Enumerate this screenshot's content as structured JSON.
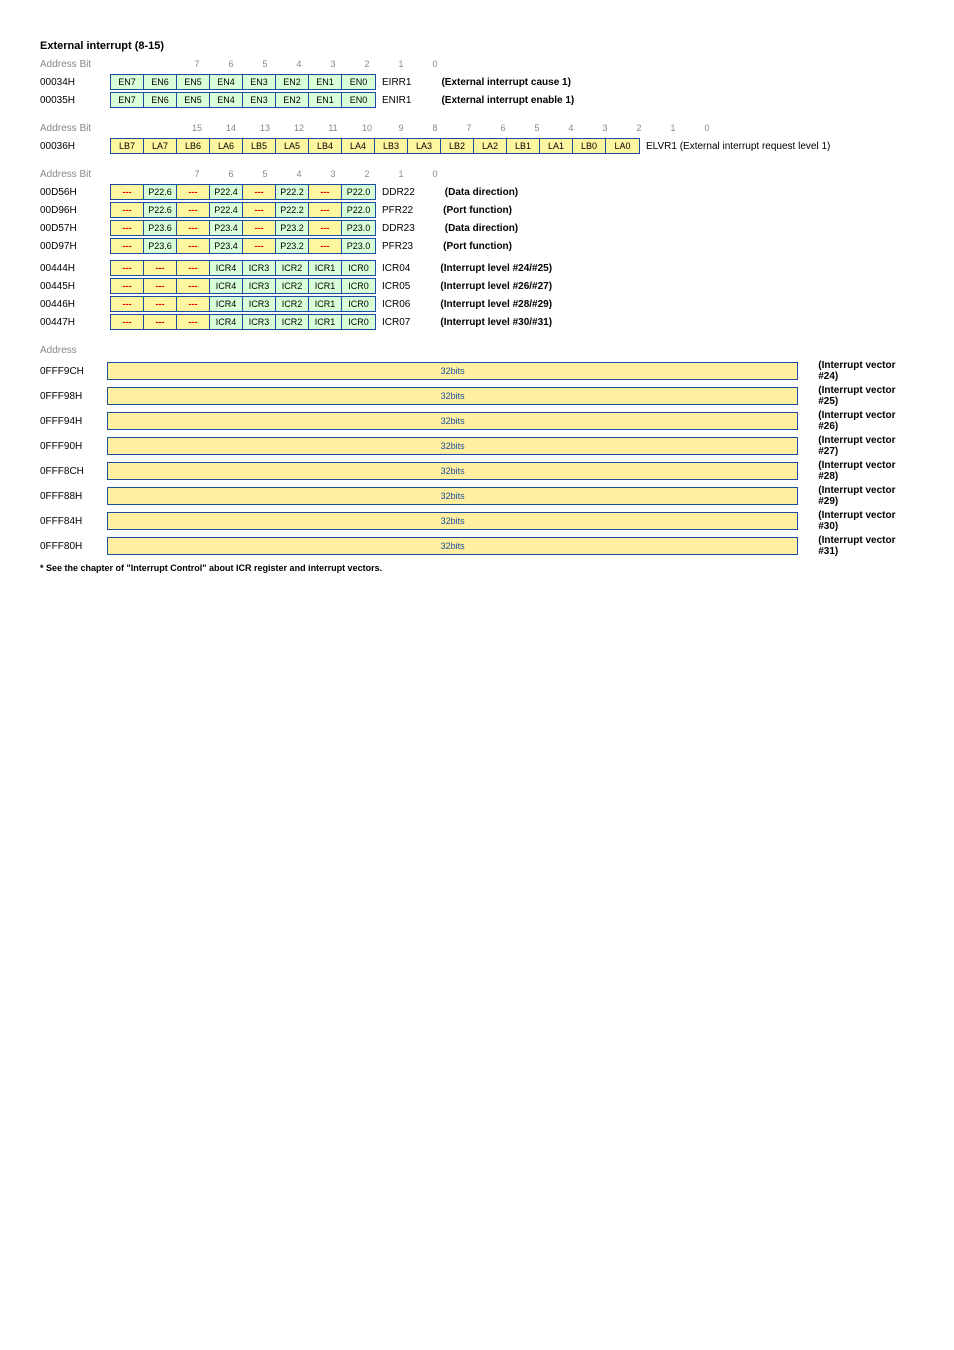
{
  "title": "External interrupt (8-15)",
  "bit_headers_8": [
    "7",
    "6",
    "5",
    "4",
    "3",
    "2",
    "1",
    "0"
  ],
  "bit_headers_16": [
    "15",
    "14",
    "13",
    "12",
    "11",
    "10",
    "9",
    "8",
    "7",
    "6",
    "5",
    "4",
    "3",
    "2",
    "1",
    "0"
  ],
  "address_label": "Address",
  "bit_label": "Bit",
  "rows8_a": [
    {
      "addr": "00034H",
      "cells": [
        "EN7",
        "EN6",
        "EN5",
        "EN4",
        "EN3",
        "EN2",
        "EN1",
        "EN0"
      ],
      "color": "green",
      "reg": "EIRR1",
      "desc": "(External interrupt cause 1)"
    },
    {
      "addr": "00035H",
      "cells": [
        "EN7",
        "EN6",
        "EN5",
        "EN4",
        "EN3",
        "EN2",
        "EN1",
        "EN0"
      ],
      "color": "green",
      "reg": "ENIR1",
      "desc": "(External interrupt enable 1)"
    }
  ],
  "row16": {
    "addr": "00036H",
    "cells": [
      "LB7",
      "LA7",
      "LB6",
      "LA6",
      "LB5",
      "LA5",
      "LB4",
      "LA4",
      "LB3",
      "LA3",
      "LB2",
      "LA2",
      "LB1",
      "LA1",
      "LB0",
      "LA0"
    ],
    "color": "yellow",
    "reg": "ELVR1 (External interrupt request level 1)"
  },
  "rows8_b": [
    {
      "addr": "00D56H",
      "cells": [
        "---",
        "P22.6",
        "---",
        "P22.4",
        "---",
        "P22.2",
        "---",
        "P22.0"
      ],
      "reg": "DDR22",
      "desc": "(Data direction)"
    },
    {
      "addr": "00D96H",
      "cells": [
        "---",
        "P22.6",
        "---",
        "P22.4",
        "---",
        "P22.2",
        "---",
        "P22.0"
      ],
      "reg": "PFR22",
      "desc": "(Port function)"
    },
    {
      "addr": "00D57H",
      "cells": [
        "---",
        "P23.6",
        "---",
        "P23.4",
        "---",
        "P23.2",
        "---",
        "P23.0"
      ],
      "reg": "DDR23",
      "desc": "(Data direction)"
    },
    {
      "addr": "00D97H",
      "cells": [
        "---",
        "P23.6",
        "---",
        "P23.4",
        "---",
        "P23.2",
        "---",
        "P23.0"
      ],
      "reg": "PFR23",
      "desc": "(Port function)"
    },
    {
      "addr": "00444H",
      "cells": [
        "---",
        "---",
        "---",
        "ICR4",
        "ICR3",
        "ICR2",
        "ICR1",
        "ICR0"
      ],
      "reg": "ICR04",
      "desc": "(Interrupt level #24/#25)"
    },
    {
      "addr": "00445H",
      "cells": [
        "---",
        "---",
        "---",
        "ICR4",
        "ICR3",
        "ICR2",
        "ICR1",
        "ICR0"
      ],
      "reg": "ICR05",
      "desc": "(Interrupt level #26/#27)"
    },
    {
      "addr": "00446H",
      "cells": [
        "---",
        "---",
        "---",
        "ICR4",
        "ICR3",
        "ICR2",
        "ICR1",
        "ICR0"
      ],
      "reg": "ICR06",
      "desc": "(Interrupt level #28/#29)"
    },
    {
      "addr": "00447H",
      "cells": [
        "---",
        "---",
        "---",
        "ICR4",
        "ICR3",
        "ICR2",
        "ICR1",
        "ICR0"
      ],
      "reg": "ICR07",
      "desc": "(Interrupt level #30/#31)"
    }
  ],
  "vectors": [
    {
      "addr": "0FFF9CH",
      "bar": "32bits",
      "label": "(Interrupt vector #24)"
    },
    {
      "addr": "0FFF98H",
      "bar": "32bits",
      "label": "(Interrupt vector #25)"
    },
    {
      "addr": "0FFF94H",
      "bar": "32bits",
      "label": "(Interrupt vector #26)"
    },
    {
      "addr": "0FFF90H",
      "bar": "32bits",
      "label": "(Interrupt vector #27)"
    },
    {
      "addr": "0FFF8CH",
      "bar": "32bits",
      "label": "(Interrupt vector #28)"
    },
    {
      "addr": "0FFF88H",
      "bar": "32bits",
      "label": "(Interrupt vector #29)"
    },
    {
      "addr": "0FFF84H",
      "bar": "32bits",
      "label": "(Interrupt vector #30)"
    },
    {
      "addr": "0FFF80H",
      "bar": "32bits",
      "label": "(Interrupt vector #31)"
    }
  ],
  "footnote": "* See the chapter of \"Interrupt Control\" about ICR register and interrupt vectors.",
  "colors": {
    "border": "#1a4fa0",
    "green": "#d9ffd9",
    "yellow": "#fff7a0",
    "dash": "#d00",
    "muted": "#888"
  }
}
